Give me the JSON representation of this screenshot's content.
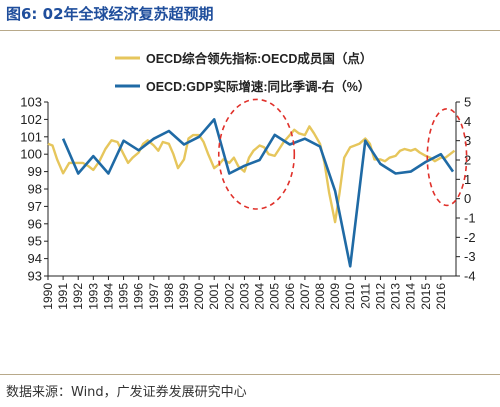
{
  "figure": {
    "title": "图6:  02年全球经济复苏超预期",
    "source": "数据来源：Wind，广发证券发展研究中心"
  },
  "colors": {
    "leading_indicator": "#e6c65c",
    "gdp_growth": "#1f6aa5",
    "highlight_ellipse": "#e0302a",
    "title": "#1f4e9c",
    "axis": "#222222"
  },
  "chart_data": {
    "type": "line",
    "legend": {
      "placement": "top-center"
    },
    "grid": false,
    "x_ticks": [
      "1990",
      "1991",
      "1992",
      "1993",
      "1994",
      "1995",
      "1996",
      "1997",
      "1998",
      "1999",
      "2000",
      "2001",
      "2002",
      "2003",
      "2004",
      "2005",
      "2006",
      "2007",
      "2008",
      "2009",
      "2010",
      "2011",
      "2012",
      "2013",
      "2014",
      "2015",
      "2016"
    ],
    "y_left": {
      "range": [
        93,
        103
      ],
      "ticks": [
        "93",
        "94",
        "95",
        "96",
        "97",
        "98",
        "99",
        "100",
        "101",
        "102",
        "103"
      ]
    },
    "y_right": {
      "range": [
        -4,
        5
      ],
      "ticks": [
        "-4",
        "-3",
        "-2",
        "-1",
        "0",
        "1",
        "2",
        "3",
        "4",
        "5"
      ]
    },
    "series": [
      {
        "name": "OECD综合领先指标:OECD成员国（点）",
        "axis": "left",
        "x": [
          1990.0,
          1990.3,
          1990.6,
          1991.0,
          1991.4,
          1991.8,
          1992.3,
          1992.7,
          1993.0,
          1993.4,
          1993.8,
          1994.2,
          1994.6,
          1995.0,
          1995.3,
          1995.6,
          1996.0,
          1996.3,
          1996.6,
          1997.0,
          1997.3,
          1997.6,
          1998.0,
          1998.3,
          1998.6,
          1999.0,
          1999.3,
          1999.6,
          2000.0,
          2000.3,
          2000.6,
          2001.0,
          2001.3,
          2001.6,
          2002.0,
          2002.3,
          2002.6,
          2003.0,
          2003.3,
          2003.6,
          2004.0,
          2004.3,
          2004.6,
          2005.0,
          2005.3,
          2005.6,
          2006.0,
          2006.3,
          2006.6,
          2007.0,
          2007.3,
          2007.6,
          2008.0,
          2008.3,
          2008.6,
          2009.0,
          2009.3,
          2009.6,
          2010.0,
          2010.3,
          2010.6,
          2011.0,
          2011.3,
          2011.6,
          2012.0,
          2012.3,
          2012.6,
          2013.0,
          2013.3,
          2013.6,
          2014.0,
          2014.3,
          2014.6,
          2015.0,
          2015.3,
          2015.6,
          2016.0,
          2016.3,
          2016.6,
          2016.9
        ],
        "values": [
          100.6,
          100.5,
          99.7,
          98.9,
          99.5,
          99.5,
          99.5,
          99.3,
          99.1,
          99.6,
          100.3,
          100.8,
          100.7,
          100.0,
          99.5,
          99.8,
          100.1,
          100.6,
          100.8,
          100.5,
          100.2,
          100.7,
          100.6,
          100.0,
          99.2,
          99.7,
          100.9,
          101.1,
          101.1,
          100.7,
          100.0,
          99.2,
          99.4,
          99.7,
          99.5,
          99.8,
          99.3,
          99.0,
          99.8,
          100.2,
          100.5,
          100.4,
          100.0,
          99.9,
          100.3,
          100.7,
          101.1,
          101.4,
          101.2,
          101.1,
          101.6,
          101.2,
          100.6,
          99.5,
          97.8,
          96.1,
          97.8,
          99.8,
          100.4,
          100.5,
          100.6,
          100.9,
          100.6,
          99.7,
          99.7,
          99.6,
          99.8,
          99.9,
          100.2,
          100.3,
          100.2,
          100.3,
          100.1,
          99.9,
          99.8,
          99.6,
          99.8,
          99.8,
          100.0,
          100.2
        ]
      },
      {
        "name": "OECD:GDP实际增速:同比季调-右（%）",
        "axis": "right",
        "x": [
          1991.0,
          1992.0,
          1993.0,
          1994.0,
          1995.0,
          1996.0,
          1997.0,
          1998.0,
          1999.0,
          2000.0,
          2001.0,
          2002.0,
          2003.0,
          2004.0,
          2005.0,
          2006.0,
          2007.0,
          2008.0,
          2009.0,
          2010.0,
          2011.0,
          2012.0,
          2013.0,
          2014.0,
          2015.0,
          2016.0
        ],
        "values": [
          3.1,
          1.3,
          2.2,
          1.3,
          3.0,
          2.5,
          3.1,
          3.5,
          2.8,
          3.2,
          4.1,
          1.3,
          1.7,
          2.0,
          3.3,
          2.8,
          3.1,
          2.7,
          0.4,
          -3.5,
          3.0,
          1.8,
          1.3,
          1.4,
          1.9,
          2.3
        ]
      }
    ],
    "last_point": {
      "x": 2016.8,
      "value": 1.4
    },
    "annotations": [
      {
        "type": "dashed-ellipse",
        "center_year": 2003.8,
        "center_left_value": 100.0,
        "span_years": 5.0,
        "span_left_units": 6.3
      },
      {
        "type": "dashed-ellipse",
        "center_year": 2016.4,
        "center_right_value": 2.15,
        "span_years": 2.6,
        "span_right_units": 5.0
      }
    ]
  }
}
